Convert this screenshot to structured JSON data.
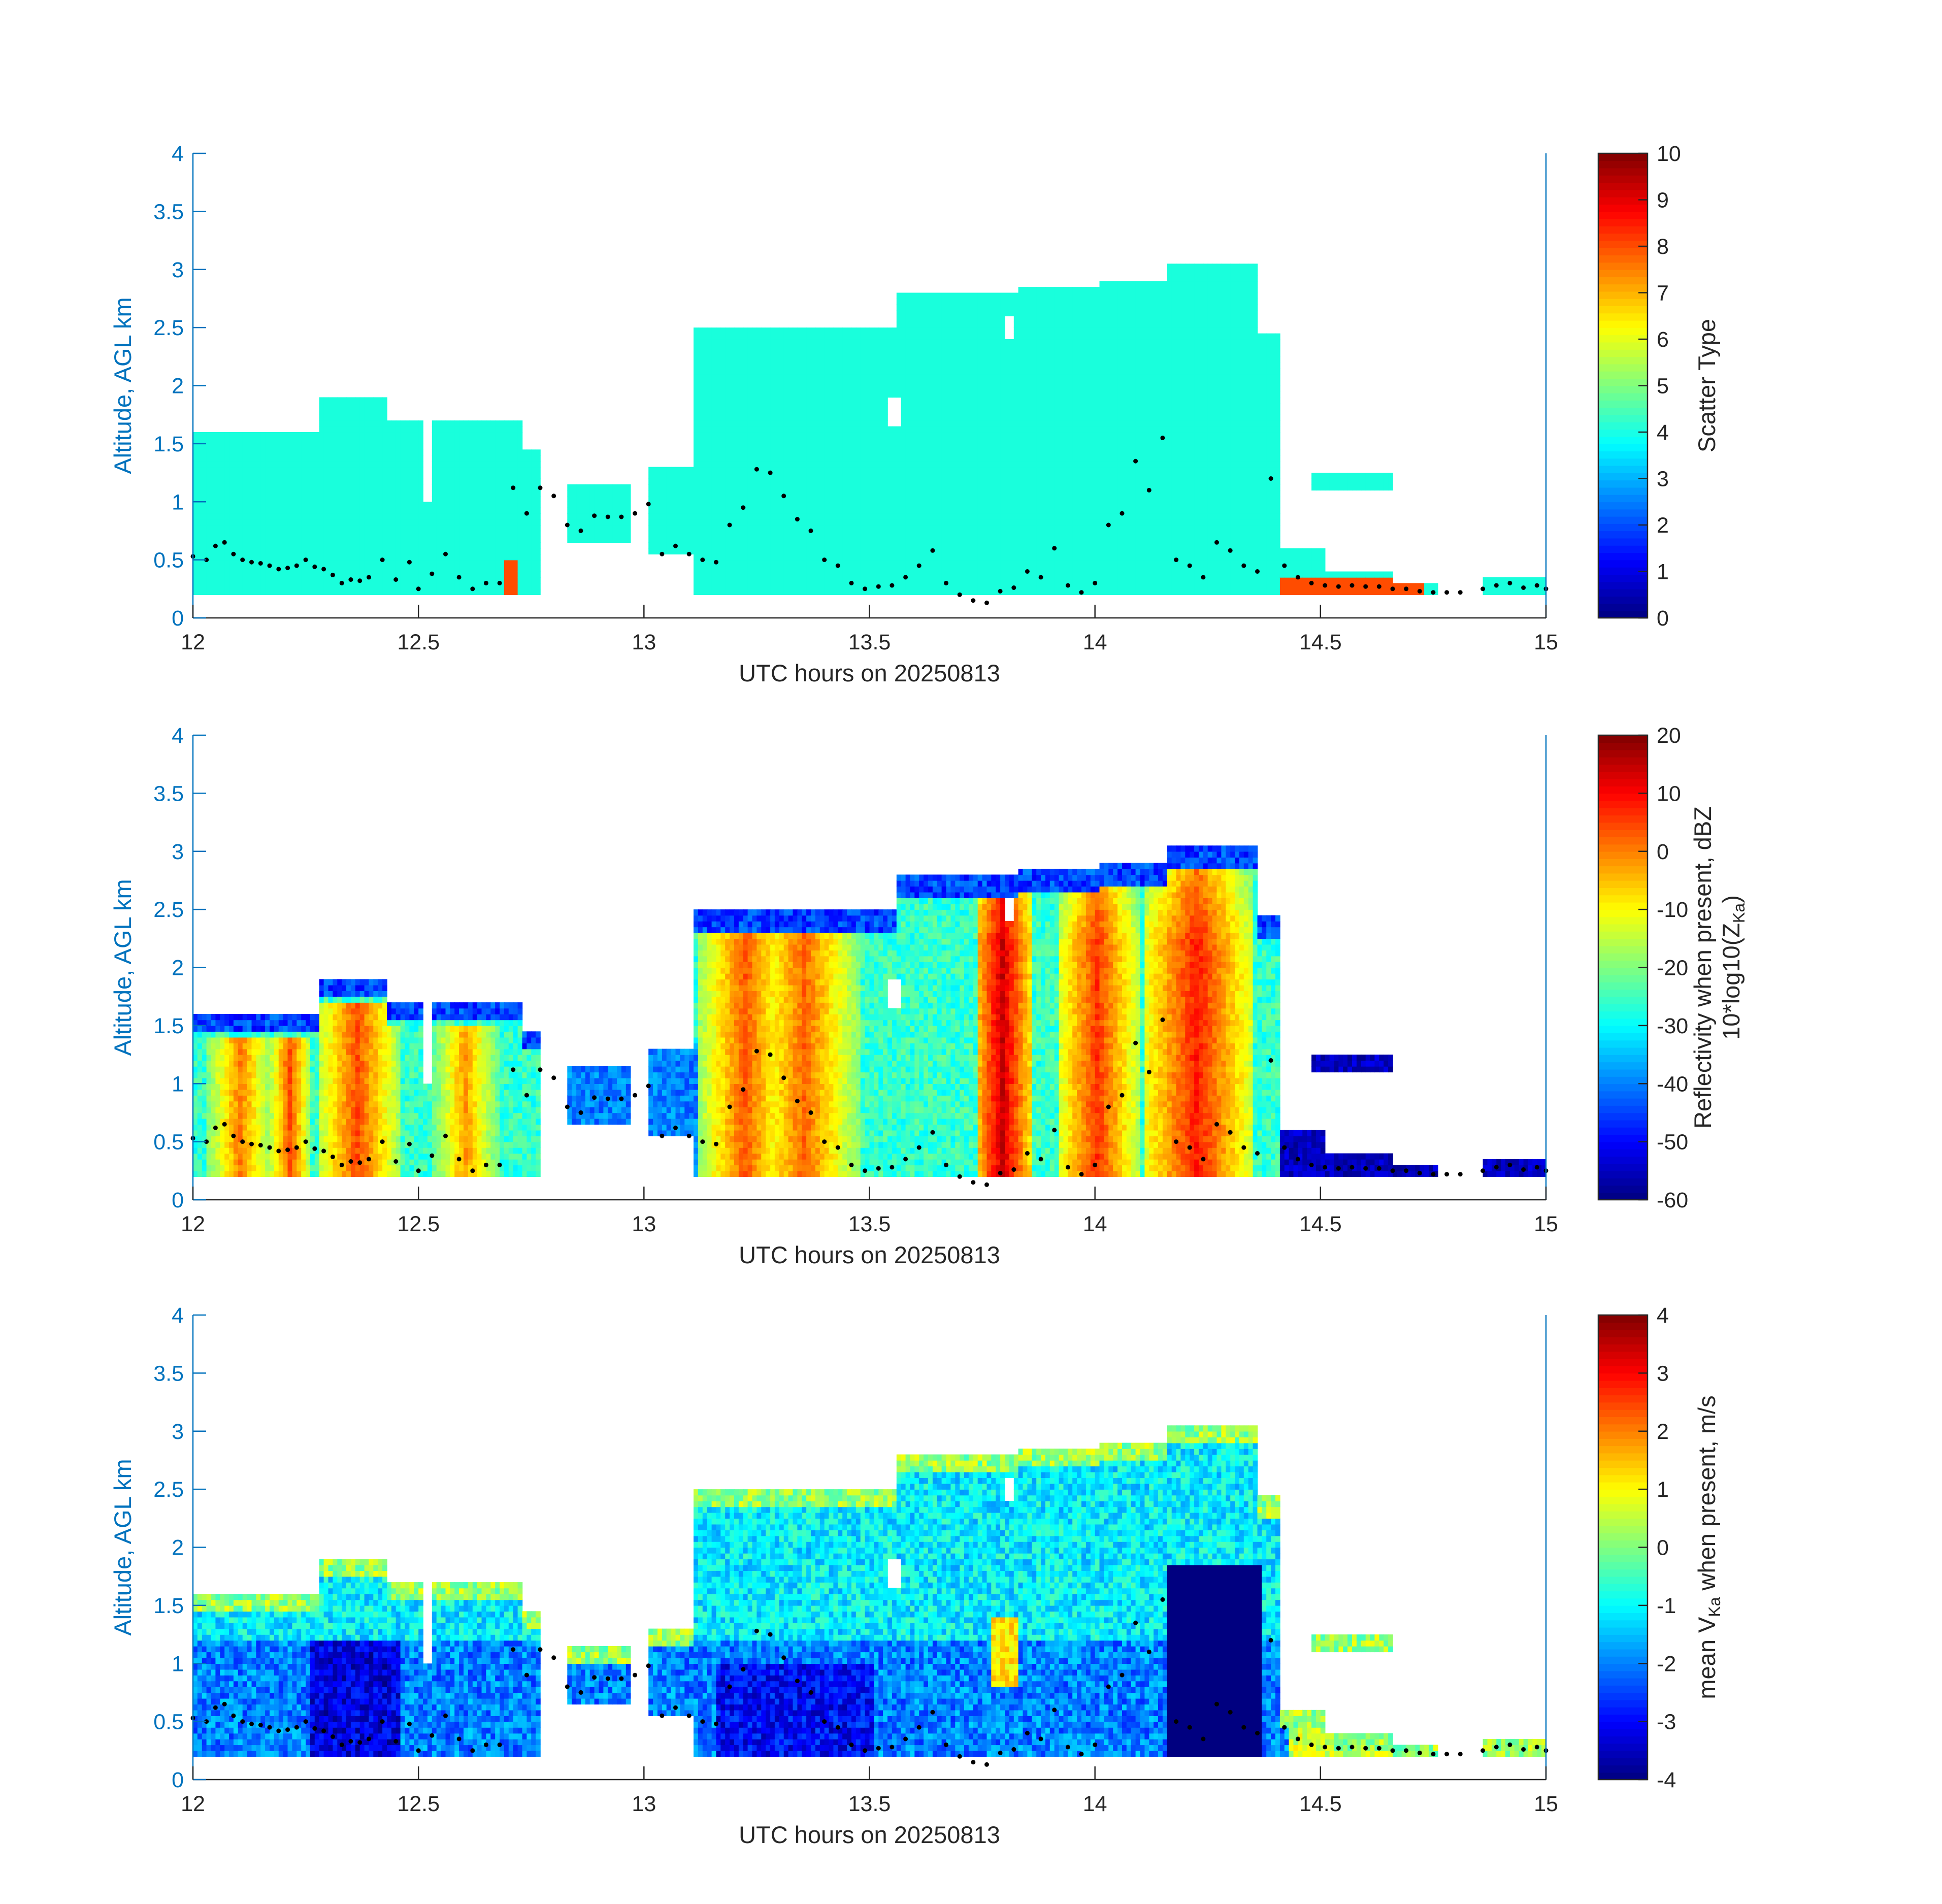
{
  "figure": {
    "colors": {
      "axis_left": "#0072BD",
      "axis_bottom": "#262626",
      "cloud_cyan": "#19FFDC",
      "marker_dot": "#000000",
      "background": "#FFFFFF"
    },
    "colormap": "jet"
  },
  "chart_data": [
    {
      "type": "heatmap",
      "panel": "scatter-type",
      "xlabel": "UTC hours on 20250813",
      "ylabel": "Altitude, AGL km",
      "xlim": [
        12,
        15
      ],
      "ylim": [
        0,
        4
      ],
      "xticks": [
        "12",
        "12.5",
        "13",
        "13.5",
        "14",
        "14.5",
        "15"
      ],
      "yticks": [
        "0",
        "0.5",
        "1",
        "1.5",
        "2",
        "2.5",
        "3",
        "3.5",
        "4"
      ],
      "colorbar": {
        "label_main": "Scatter Type",
        "clim": [
          0,
          10
        ],
        "ticks": [
          "0",
          "1",
          "2",
          "3",
          "4",
          "5",
          "6",
          "7",
          "8",
          "9",
          "10"
        ]
      },
      "field_value": 3.8,
      "precip_value": 8.0
    },
    {
      "type": "heatmap",
      "panel": "reflectivity",
      "xlabel": "UTC hours on 20250813",
      "ylabel": "Altitude, AGL km",
      "xlim": [
        12,
        15
      ],
      "ylim": [
        0,
        4
      ],
      "xticks": [
        "12",
        "12.5",
        "13",
        "13.5",
        "14",
        "14.5",
        "15"
      ],
      "yticks": [
        "0",
        "0.5",
        "1",
        "1.5",
        "2",
        "2.5",
        "3",
        "3.5",
        "4"
      ],
      "colorbar": {
        "label_main": "Reflectivity when present, dBZ",
        "label_second": "10*log10(Z",
        "label_sub": "Ka",
        "label_end": ")",
        "clim": [
          -60,
          20
        ],
        "ticks": [
          "-60",
          "-50",
          "-40",
          "-30",
          "-20",
          "-10",
          "0",
          "10",
          "20"
        ]
      },
      "core_columns": [
        {
          "x": 12.1,
          "width": 0.05,
          "peak": 0
        },
        {
          "x": 12.21,
          "width": 0.03,
          "peak": 4
        },
        {
          "x": 12.36,
          "width": 0.06,
          "peak": 4
        },
        {
          "x": 12.6,
          "width": 0.05,
          "peak": -2
        },
        {
          "x": 13.22,
          "width": 0.07,
          "peak": 3
        },
        {
          "x": 13.35,
          "width": 0.08,
          "peak": 2
        },
        {
          "x": 13.79,
          "width": 0.04,
          "peak": 14
        },
        {
          "x": 14.0,
          "width": 0.06,
          "peak": 6
        },
        {
          "x": 14.22,
          "width": 0.08,
          "peak": 8
        }
      ]
    },
    {
      "type": "heatmap",
      "panel": "mean-velocity",
      "xlabel": "UTC hours on 20250813",
      "ylabel": "Altitude, AGL km",
      "xlim": [
        12,
        15
      ],
      "ylim": [
        0,
        4
      ],
      "xticks": [
        "12",
        "12.5",
        "13",
        "13.5",
        "14",
        "14.5",
        "15"
      ],
      "yticks": [
        "0",
        "0.5",
        "1",
        "1.5",
        "2",
        "2.5",
        "3",
        "3.5",
        "4"
      ],
      "colorbar": {
        "label_pre": "mean V",
        "label_sub": "Ka",
        "label_post": " when present, m/s",
        "clim": [
          -4,
          4
        ],
        "ticks": [
          "-4",
          "-3",
          "-2",
          "-1",
          "0",
          "1",
          "2",
          "3",
          "4"
        ]
      },
      "downdraft_region": {
        "x": [
          14.15,
          14.36
        ],
        "y": [
          0.2,
          1.82
        ],
        "value": -4.0
      }
    }
  ],
  "cloud_mask": {
    "segments": [
      [
        12.0,
        12.27,
        0.2,
        1.6
      ],
      [
        12.27,
        12.42,
        0.2,
        1.9
      ],
      [
        12.42,
        12.5,
        0.2,
        1.7
      ],
      [
        12.5,
        12.52,
        0.2,
        1.3
      ],
      [
        12.52,
        12.72,
        0.2,
        1.7
      ],
      [
        12.72,
        12.76,
        0.2,
        1.45
      ],
      [
        12.82,
        12.96,
        0.62,
        1.15
      ],
      [
        13.0,
        13.1,
        0.5,
        1.3
      ],
      [
        13.1,
        13.55,
        0.2,
        2.45
      ],
      [
        13.55,
        13.82,
        0.2,
        2.75
      ],
      [
        13.82,
        14.0,
        0.2,
        2.8
      ],
      [
        14.0,
        14.15,
        0.2,
        2.85
      ],
      [
        14.15,
        14.35,
        0.2,
        3.0
      ],
      [
        14.35,
        14.4,
        0.2,
        2.4
      ],
      [
        14.4,
        14.5,
        0.2,
        0.55
      ],
      [
        14.5,
        14.65,
        0.2,
        0.38
      ],
      [
        14.65,
        14.75,
        0.2,
        0.28
      ],
      [
        14.85,
        15.0,
        0.2,
        0.33
      ]
    ],
    "elevated_layers": [
      [
        14.47,
        14.65,
        1.1,
        1.25
      ]
    ],
    "gaps": [
      [
        12.5,
        12.52,
        1.0,
        1.7
      ],
      [
        13.53,
        13.56,
        1.65,
        1.9
      ],
      [
        13.79,
        13.81,
        2.35,
        2.55
      ]
    ]
  },
  "cloud_base_points": {
    "x": [
      12.0,
      12.03,
      12.05,
      12.07,
      12.09,
      12.11,
      12.13,
      12.15,
      12.17,
      12.19,
      12.21,
      12.23,
      12.25,
      12.27,
      12.29,
      12.31,
      12.33,
      12.35,
      12.37,
      12.39,
      12.42,
      12.45,
      12.48,
      12.5,
      12.53,
      12.56,
      12.59,
      12.62,
      12.65,
      12.68,
      12.71,
      12.74,
      12.77,
      12.8,
      12.83,
      12.86,
      12.89,
      12.92,
      12.95,
      12.98,
      13.01,
      13.04,
      13.07,
      13.1,
      13.13,
      13.16,
      13.19,
      13.22,
      13.25,
      13.28,
      13.31,
      13.34,
      13.37,
      13.4,
      13.43,
      13.46,
      13.49,
      13.52,
      13.55,
      13.58,
      13.61,
      13.64,
      13.67,
      13.7,
      13.73,
      13.76,
      13.79,
      13.82,
      13.85,
      13.88,
      13.91,
      13.94,
      13.97,
      14.0,
      14.03,
      14.06,
      14.09,
      14.12,
      14.15,
      14.18,
      14.21,
      14.24,
      14.27,
      14.3,
      14.33,
      14.36,
      14.39,
      14.42,
      14.45,
      14.48,
      14.51,
      14.54,
      14.57,
      14.6,
      14.63,
      14.66,
      14.69,
      14.72,
      14.75,
      14.78,
      14.81,
      14.86,
      14.89,
      14.92,
      14.95,
      14.98,
      15.0
    ],
    "y": [
      0.53,
      0.5,
      0.62,
      0.65,
      0.55,
      0.5,
      0.48,
      0.47,
      0.45,
      0.42,
      0.43,
      0.45,
      0.5,
      0.44,
      0.42,
      0.37,
      0.3,
      0.33,
      0.32,
      0.35,
      0.5,
      0.33,
      0.48,
      0.25,
      0.38,
      0.55,
      0.35,
      0.25,
      0.3,
      0.3,
      1.12,
      0.9,
      1.12,
      1.05,
      0.8,
      0.75,
      0.88,
      0.87,
      0.87,
      0.9,
      0.98,
      0.55,
      0.62,
      0.55,
      0.5,
      0.48,
      0.8,
      0.95,
      1.28,
      1.25,
      1.05,
      0.85,
      0.75,
      0.5,
      0.45,
      0.3,
      0.25,
      0.27,
      0.28,
      0.35,
      0.45,
      0.58,
      0.3,
      0.2,
      0.15,
      0.13,
      0.23,
      0.26,
      0.4,
      0.35,
      0.6,
      0.28,
      0.22,
      0.3,
      0.8,
      0.9,
      1.35,
      1.1,
      1.55,
      0.5,
      0.45,
      0.35,
      0.65,
      0.58,
      0.45,
      0.4,
      1.2,
      0.45,
      0.35,
      0.3,
      0.28,
      0.27,
      0.28,
      0.27,
      0.27,
      0.25,
      0.25,
      0.23,
      0.22,
      0.22,
      0.22,
      0.25,
      0.28,
      0.3,
      0.26,
      0.28,
      0.25
    ]
  }
}
